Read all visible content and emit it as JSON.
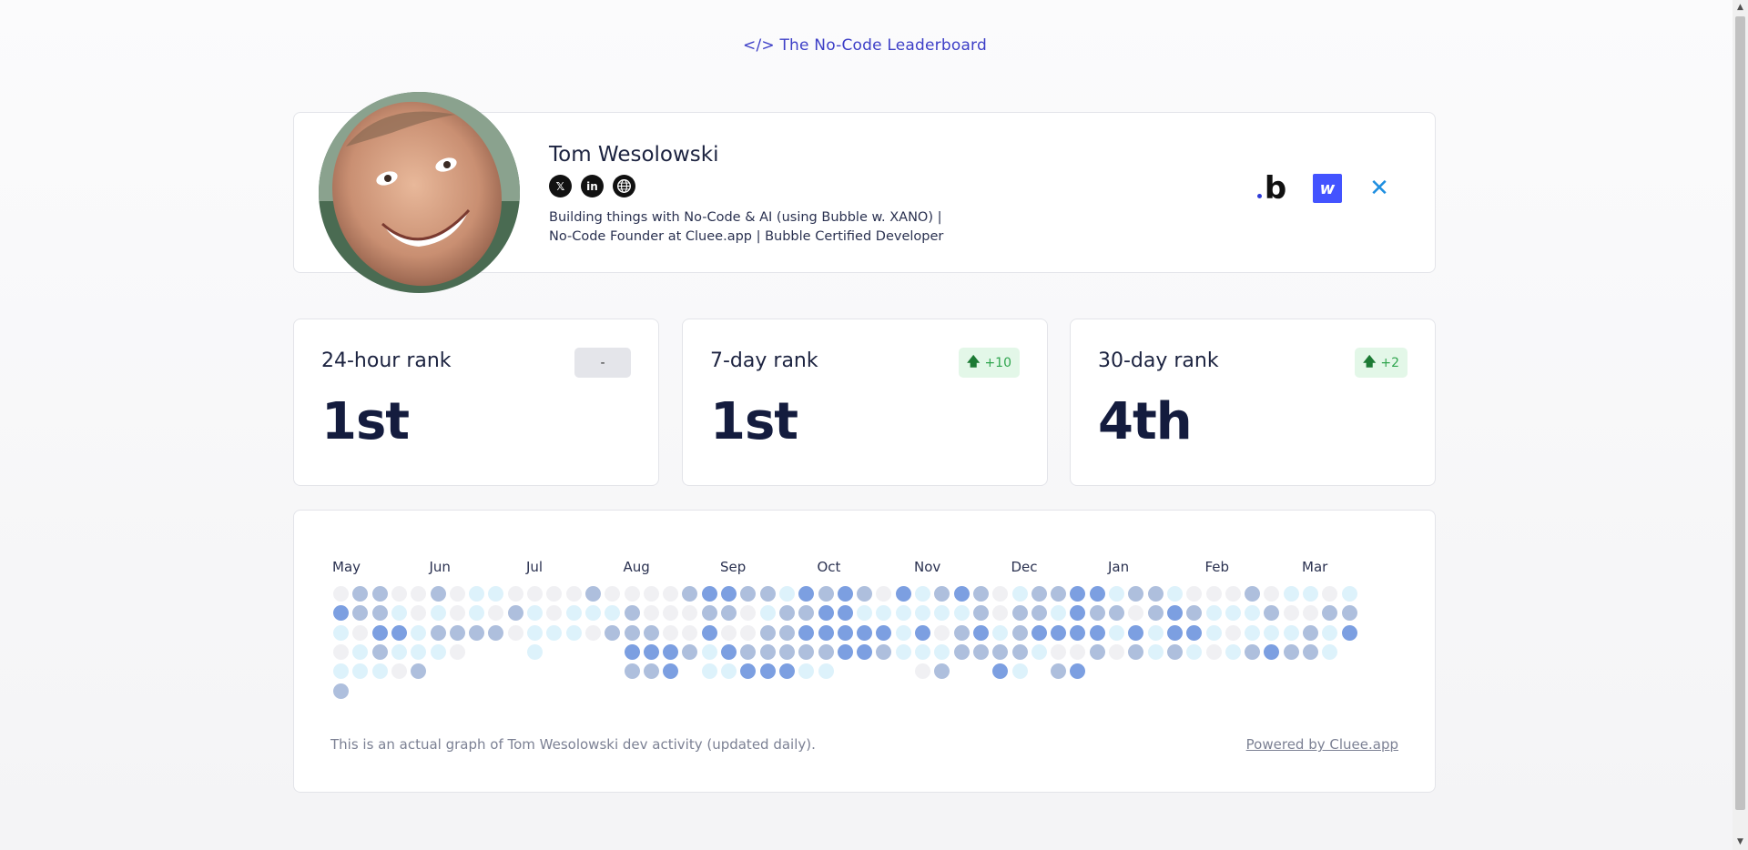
{
  "header": {
    "link_text": "</> The No-Code Leaderboard"
  },
  "profile": {
    "name": "Tom Wesolowski",
    "bio": "Building things with No-Code & AI (using Bubble w. XANO) | No-Code Founder at Cluee.app | Bubble Certified Developer",
    "socials": [
      "x-icon",
      "linkedin-icon",
      "website-icon"
    ],
    "tools": [
      "bubble-logo",
      "webflow-logo",
      "xano-logo"
    ]
  },
  "ranks": [
    {
      "label": "24-hour rank",
      "value": "1st",
      "change": "-",
      "trend": "none"
    },
    {
      "label": "7-day rank",
      "value": "1st",
      "change": "+10",
      "trend": "up"
    },
    {
      "label": "30-day rank",
      "value": "4th",
      "change": "+2",
      "trend": "up"
    }
  ],
  "activity": {
    "months": [
      "May",
      "Jun",
      "Jul",
      "Aug",
      "Sep",
      "Oct",
      "Nov",
      "Dec",
      "Jan",
      "Feb",
      "Mar"
    ],
    "levels_legend": [
      "empty",
      "light",
      "medium",
      "strong"
    ],
    "colors": {
      "0": "#f0f0f3",
      "1": "#ddf2fb",
      "2": "#aebfdd",
      "3": "#7c9fe1"
    },
    "columns": [
      [
        0,
        3,
        1,
        0,
        1,
        2
      ],
      [
        2,
        2,
        0,
        1,
        1
      ],
      [
        2,
        2,
        3,
        2,
        1
      ],
      [
        0,
        1,
        3,
        1,
        0
      ],
      [
        0,
        0,
        1,
        1,
        2
      ],
      [
        2,
        1,
        2,
        1
      ],
      [
        0,
        0,
        2,
        0
      ],
      [
        1,
        1,
        2
      ],
      [
        1,
        0,
        2
      ],
      [
        0,
        2,
        0
      ],
      [
        0,
        1,
        1,
        1
      ],
      [
        0,
        0,
        1
      ],
      [
        0,
        1,
        1
      ],
      [
        2,
        1,
        0
      ],
      [
        0,
        1,
        2
      ],
      [
        0,
        2,
        2,
        3,
        2
      ],
      [
        0,
        0,
        2,
        3,
        2
      ],
      [
        0,
        0,
        0,
        3,
        3
      ],
      [
        2,
        0,
        0,
        2
      ],
      [
        3,
        2,
        3,
        1,
        1
      ],
      [
        3,
        2,
        0,
        3,
        1
      ],
      [
        2,
        0,
        0,
        2,
        3
      ],
      [
        2,
        1,
        2,
        2,
        3
      ],
      [
        1,
        2,
        2,
        2,
        3
      ],
      [
        3,
        2,
        3,
        2,
        1
      ],
      [
        2,
        3,
        3,
        2,
        1
      ],
      [
        3,
        3,
        3,
        3
      ],
      [
        2,
        1,
        3,
        3
      ],
      [
        0,
        1,
        3,
        2
      ],
      [
        3,
        1,
        1,
        1
      ],
      [
        1,
        1,
        3,
        1,
        0
      ],
      [
        2,
        1,
        0,
        1,
        2
      ],
      [
        3,
        1,
        2,
        2
      ],
      [
        2,
        2,
        3,
        2
      ],
      [
        0,
        0,
        1,
        2,
        3
      ],
      [
        1,
        2,
        2,
        2,
        1
      ],
      [
        2,
        2,
        3,
        1
      ],
      [
        2,
        1,
        3,
        0,
        2
      ],
      [
        3,
        3,
        3,
        0,
        3
      ],
      [
        3,
        2,
        3,
        2
      ],
      [
        1,
        2,
        1,
        0
      ],
      [
        2,
        0,
        3,
        2
      ],
      [
        2,
        2,
        1,
        1
      ],
      [
        1,
        3,
        3,
        2
      ],
      [
        0,
        2,
        3,
        1
      ],
      [
        0,
        1,
        1,
        0
      ],
      [
        0,
        1,
        0,
        1
      ],
      [
        2,
        1,
        1,
        2
      ],
      [
        0,
        2,
        1,
        3
      ],
      [
        1,
        0,
        1,
        2
      ],
      [
        1,
        0,
        2,
        2
      ],
      [
        0,
        2,
        1,
        1
      ],
      [
        1,
        2,
        3
      ]
    ],
    "caption": "This is an actual graph of Tom Wesolowski dev activity (updated daily).",
    "powered_by": "Powered by Cluee.app"
  }
}
